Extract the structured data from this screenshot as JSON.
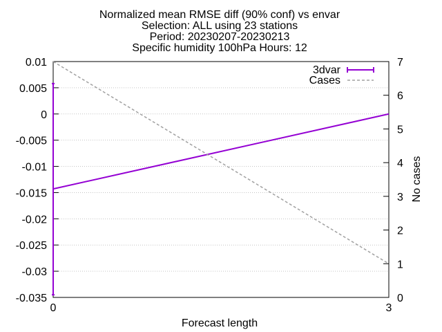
{
  "chart_data": {
    "type": "line",
    "title_lines": [
      "Normalized mean RMSE diff (90% conf) vs envar",
      "Selection: ALL using    23 stations",
      "Period: 20230207-20230213",
      "Specific humidity 100hPa   Hours: 12"
    ],
    "xlabel": "Forecast length",
    "ylabel": "",
    "y2label": "No cases",
    "xlim": [
      0,
      3
    ],
    "ylim": [
      -0.035,
      0.01
    ],
    "y2lim": [
      0,
      7
    ],
    "x_ticks": [
      "0",
      "3"
    ],
    "y_ticks": [
      "0.01",
      "0.005",
      "0",
      "-0.005",
      "-0.01",
      "-0.015",
      "-0.02",
      "-0.025",
      "-0.03",
      "-0.035"
    ],
    "y2_ticks": [
      "7",
      "6",
      "5",
      "4",
      "3",
      "2",
      "1",
      "0"
    ],
    "grid": true,
    "legend_position": "top-right",
    "series": [
      {
        "name": "3dvar",
        "axis": "y",
        "color": "#9400d3",
        "x": [
          0,
          3
        ],
        "y": [
          -0.0143,
          0.0
        ],
        "error_low": [
          -0.0345,
          0.0
        ],
        "error_high": [
          0.0058,
          0.0
        ]
      },
      {
        "name": "Cases",
        "axis": "y2",
        "color": "#a0a0a0",
        "dashed": true,
        "x": [
          0,
          3
        ],
        "y": [
          7,
          1
        ]
      }
    ]
  }
}
